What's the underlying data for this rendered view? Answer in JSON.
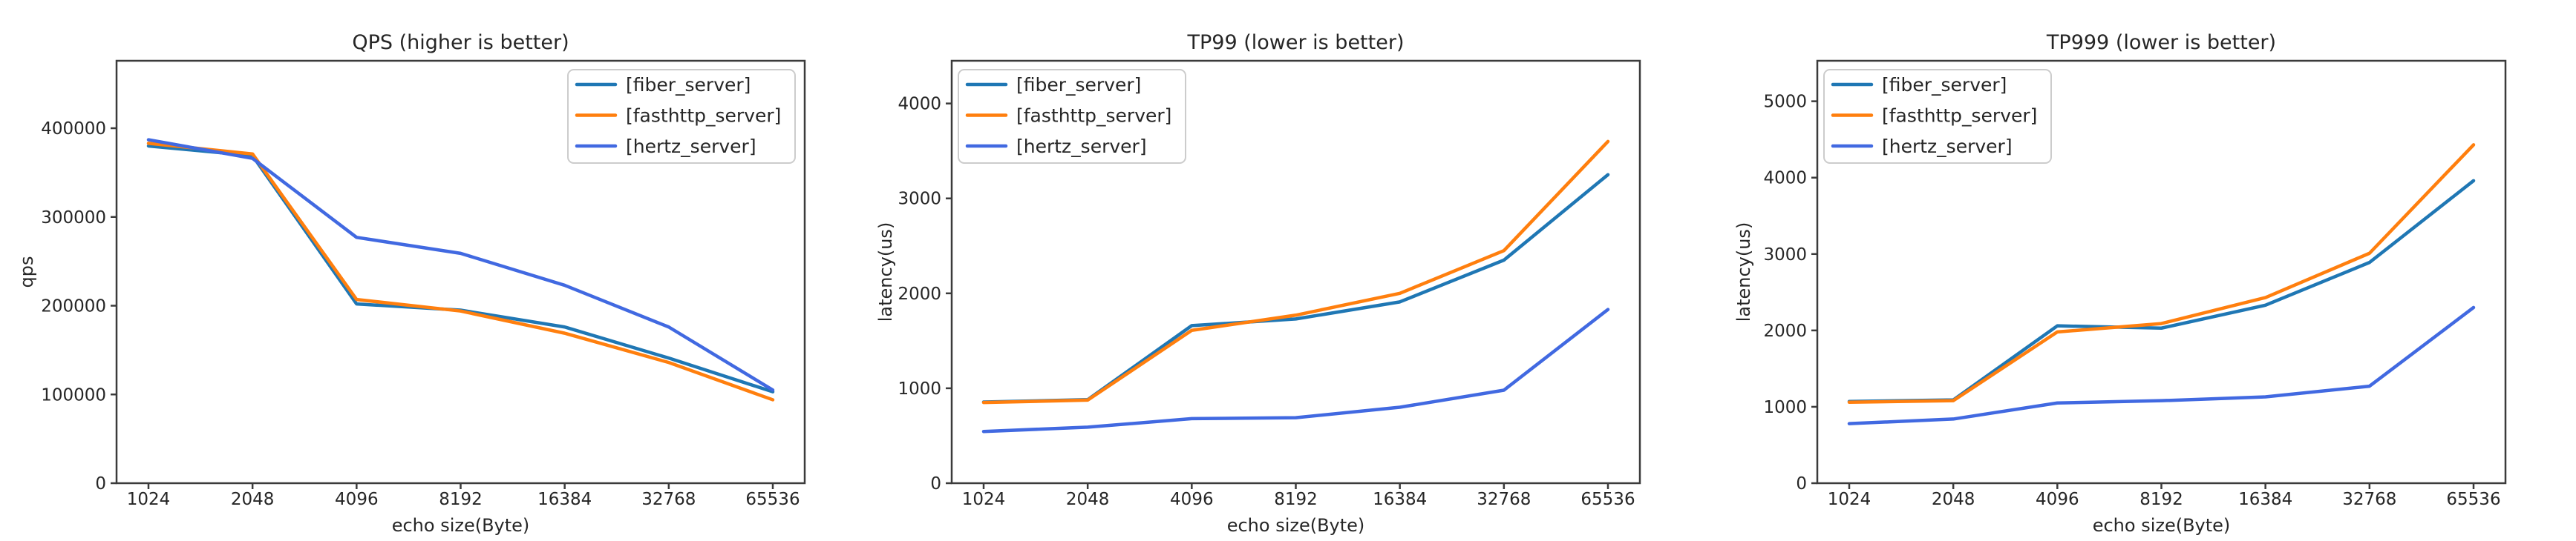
{
  "figure": {
    "background": "#ffffff",
    "axis_color": "#3b3b3b",
    "text_color": "#262626",
    "legend_border_color": "#cccccc",
    "legend_background": "rgba(255,255,255,0.9)"
  },
  "chart_data": [
    {
      "type": "line",
      "title": "QPS (higher is better)",
      "xlabel": "echo size(Byte)",
      "ylabel": "qps",
      "categories": [
        "1024",
        "2048",
        "4096",
        "8192",
        "16384",
        "32768",
        "65536"
      ],
      "yticks": [
        0,
        100000,
        200000,
        300000,
        400000
      ],
      "ylim": [
        0,
        476000
      ],
      "grid": false,
      "legend_position": "upper-right",
      "series": [
        {
          "name": "[fiber_server]",
          "color": "#1f77b4",
          "values": [
            380000,
            369000,
            202000,
            195000,
            176000,
            141000,
            103000
          ]
        },
        {
          "name": "[fasthttp_server]",
          "color": "#ff7f0e",
          "values": [
            383000,
            371000,
            207000,
            194000,
            169000,
            136000,
            94000
          ]
        },
        {
          "name": "[hertz_server]",
          "color": "#4169e1",
          "values": [
            387000,
            366000,
            277000,
            259000,
            223000,
            176000,
            105000
          ]
        }
      ]
    },
    {
      "type": "line",
      "title": "TP99 (lower is better)",
      "xlabel": "echo size(Byte)",
      "ylabel": "latency(us)",
      "categories": [
        "1024",
        "2048",
        "4096",
        "8192",
        "16384",
        "32768",
        "65536"
      ],
      "yticks": [
        0,
        1000,
        2000,
        3000,
        4000
      ],
      "ylim": [
        0,
        4450
      ],
      "grid": false,
      "legend_position": "upper-left",
      "series": [
        {
          "name": "[fiber_server]",
          "color": "#1f77b4",
          "values": [
            855,
            880,
            1660,
            1730,
            1910,
            2350,
            3250
          ]
        },
        {
          "name": "[fasthttp_server]",
          "color": "#ff7f0e",
          "values": [
            850,
            875,
            1610,
            1770,
            2000,
            2450,
            3600
          ]
        },
        {
          "name": "[hertz_server]",
          "color": "#4169e1",
          "values": [
            545,
            590,
            680,
            690,
            800,
            980,
            1830
          ]
        }
      ]
    },
    {
      "type": "line",
      "title": "TP999 (lower is better)",
      "xlabel": "echo size(Byte)",
      "ylabel": "latency(us)",
      "categories": [
        "1024",
        "2048",
        "4096",
        "8192",
        "16384",
        "32768",
        "65536"
      ],
      "yticks": [
        0,
        1000,
        2000,
        3000,
        4000,
        5000
      ],
      "ylim": [
        0,
        5530
      ],
      "grid": false,
      "legend_position": "upper-left",
      "series": [
        {
          "name": "[fiber_server]",
          "color": "#1f77b4",
          "values": [
            1070,
            1090,
            2060,
            2030,
            2330,
            2890,
            3960
          ]
        },
        {
          "name": "[fasthttp_server]",
          "color": "#ff7f0e",
          "values": [
            1060,
            1080,
            1980,
            2090,
            2430,
            3010,
            4430
          ]
        },
        {
          "name": "[hertz_server]",
          "color": "#4169e1",
          "values": [
            780,
            840,
            1050,
            1080,
            1130,
            1270,
            2300
          ]
        }
      ]
    }
  ]
}
